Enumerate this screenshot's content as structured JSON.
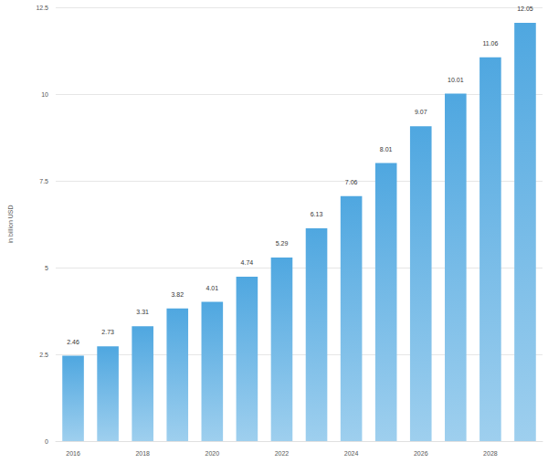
{
  "chart_data": {
    "type": "bar",
    "y_label": "in billion USD",
    "categories": [
      "2016",
      null,
      "2018",
      null,
      "2020",
      null,
      "2022",
      null,
      "2024",
      null,
      "2026",
      null,
      "2028",
      null
    ],
    "values": [
      2.46,
      2.73,
      3.31,
      3.82,
      4.01,
      4.74,
      5.29,
      6.13,
      7.06,
      8.01,
      9.07,
      10.01,
      11.06,
      12.05
    ],
    "color": "#4fa7e0",
    "ylim": [
      0,
      12.5
    ],
    "yticks": [
      0,
      2.5,
      5,
      7.5,
      10,
      12.5
    ],
    "grid": true,
    "data_labels": true
  }
}
